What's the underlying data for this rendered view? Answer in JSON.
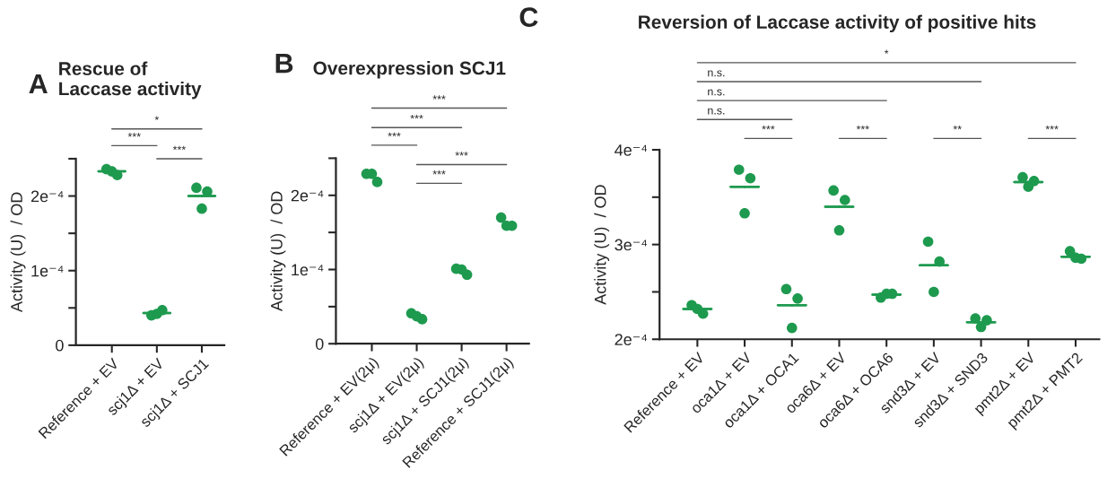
{
  "chart_data": [
    {
      "type": "scatter",
      "title": "Rescue of Laccase activity",
      "ylabel": "Activity (U)  / OD",
      "categories": [
        "Reference + EV",
        "scj1Δ + EV",
        "scj1Δ + SCJ1"
      ],
      "series": [
        {
          "color": "#1e9a4f",
          "values": [
            2.36,
            0.4,
            2.11
          ]
        },
        {
          "color": "#1e9a4f",
          "values": [
            2.28,
            0.47,
            2.06
          ]
        },
        {
          "color": "#1e9a4f",
          "values": [
            2.33,
            0.42,
            1.83
          ]
        },
        {
          "type": "box",
          "color": "#1e9a4f",
          "boxes": [
            {
              "low": 2.33,
              "q1": 2.33,
              "median": 2.33,
              "q3": 2.33,
              "high": 2.33
            },
            {
              "low": 0.43,
              "q1": 0.43,
              "median": 0.43,
              "q3": 0.43,
              "high": 0.43
            },
            {
              "low": 2.0,
              "q1": 2.0,
              "median": 2.0,
              "q3": 2.0,
              "high": 2.0
            }
          ]
        }
      ],
      "ylim": [
        0,
        2.5
      ],
      "yticks": [
        0,
        {
          "value": 0.5,
          "label": null
        },
        {
          "value": 1,
          "label": "1e⁻⁴"
        },
        {
          "value": 1.5,
          "label": null
        },
        {
          "value": 2,
          "label": "2e⁻⁴"
        },
        {
          "value": 2.5,
          "label": null
        }
      ],
      "annotations": [
        "A",
        "*",
        "***",
        "***"
      ],
      "grid": false,
      "marker": "circle"
    },
    {
      "type": "scatter",
      "title": "Overexpression SCJ1",
      "ylabel": "Activity (U)  / OD",
      "categories": [
        "Reference + EV(2μ)",
        "scj1Δ + EV(2μ)",
        "scj1Δ + SCJ1(2μ)",
        "Reference + SCJ1(2μ)"
      ],
      "series": [
        {
          "color": "#1e9a4f",
          "values": [
            2.29,
            0.41,
            1.01,
            1.7
          ]
        },
        {
          "color": "#1e9a4f",
          "values": [
            2.18,
            0.33,
            0.93,
            1.59
          ]
        },
        {
          "color": "#1e9a4f",
          "values": [
            2.29,
            0.37,
            1.0,
            1.59
          ]
        }
      ],
      "ylim": [
        0,
        2.5
      ],
      "yticks": [
        0,
        {
          "value": 0.5,
          "label": null
        },
        {
          "value": 1,
          "label": "1e⁻⁴"
        },
        {
          "value": 1.5,
          "label": null
        },
        {
          "value": 2,
          "label": "2e⁻⁴"
        },
        {
          "value": 2.5,
          "label": null
        }
      ],
      "annotations": [
        "B",
        "***",
        "***",
        "***",
        "***",
        "***"
      ],
      "grid": false,
      "marker": "circle"
    },
    {
      "type": "scatter",
      "title": "Reversion of Laccase activity of positive hits",
      "ylabel": "Activity (U)  / OD",
      "categories": [
        "Reference + EV",
        "oca1Δ + EV",
        "oca1Δ + OCA1",
        "oca6Δ + EV",
        "oca6Δ + OCA6",
        "snd3Δ + EV",
        "snd3Δ + SND3",
        "pmt2Δ + EV",
        "pmt2Δ + PMT2"
      ],
      "series": [
        {
          "color": "#1e9a4f",
          "values": [
            2.36,
            3.79,
            2.53,
            3.57,
            2.44,
            3.03,
            2.22,
            3.71,
            2.93
          ]
        },
        {
          "color": "#1e9a4f",
          "values": [
            2.27,
            3.7,
            2.43,
            3.47,
            2.48,
            2.82,
            2.2,
            3.67,
            2.85
          ]
        },
        {
          "color": "#1e9a4f",
          "values": [
            2.32,
            3.33,
            2.12,
            3.15,
            2.48,
            2.5,
            2.13,
            3.61,
            2.86
          ]
        },
        {
          "type": "box",
          "color": "#1e9a4f",
          "boxes": [
            {
              "low": 2.32,
              "q1": 2.32,
              "median": 2.32,
              "q3": 2.32,
              "high": 2.32
            },
            {
              "low": 3.61,
              "q1": 3.61,
              "median": 3.61,
              "q3": 3.61,
              "high": 3.61
            },
            {
              "low": 2.36,
              "q1": 2.36,
              "median": 2.36,
              "q3": 2.36,
              "high": 2.36
            },
            {
              "low": 3.4,
              "q1": 3.4,
              "median": 3.4,
              "q3": 3.4,
              "high": 3.4
            },
            {
              "low": 2.47,
              "q1": 2.47,
              "median": 2.47,
              "q3": 2.47,
              "high": 2.47
            },
            {
              "low": 2.78,
              "q1": 2.78,
              "median": 2.78,
              "q3": 2.78,
              "high": 2.78
            },
            {
              "low": 2.18,
              "q1": 2.18,
              "median": 2.18,
              "q3": 2.18,
              "high": 2.18
            },
            {
              "low": 3.66,
              "q1": 3.66,
              "median": 3.66,
              "q3": 3.66,
              "high": 3.66
            },
            {
              "low": 2.87,
              "q1": 2.87,
              "median": 2.87,
              "q3": 2.87,
              "high": 2.87
            }
          ]
        }
      ],
      "ylim": [
        2,
        4
      ],
      "yticks": [
        {
          "value": 2,
          "label": "2e⁻⁴"
        },
        {
          "value": 2.5,
          "label": null
        },
        {
          "value": 3,
          "label": "3e⁻⁴"
        },
        {
          "value": 3.5,
          "label": null
        },
        {
          "value": 4,
          "label": "4e⁻⁴"
        }
      ],
      "annotations": [
        "C",
        "*",
        "n.s.",
        "n.s.",
        "n.s.",
        "***",
        "***",
        "**",
        "***"
      ],
      "grid": false,
      "marker": "circle"
    }
  ]
}
